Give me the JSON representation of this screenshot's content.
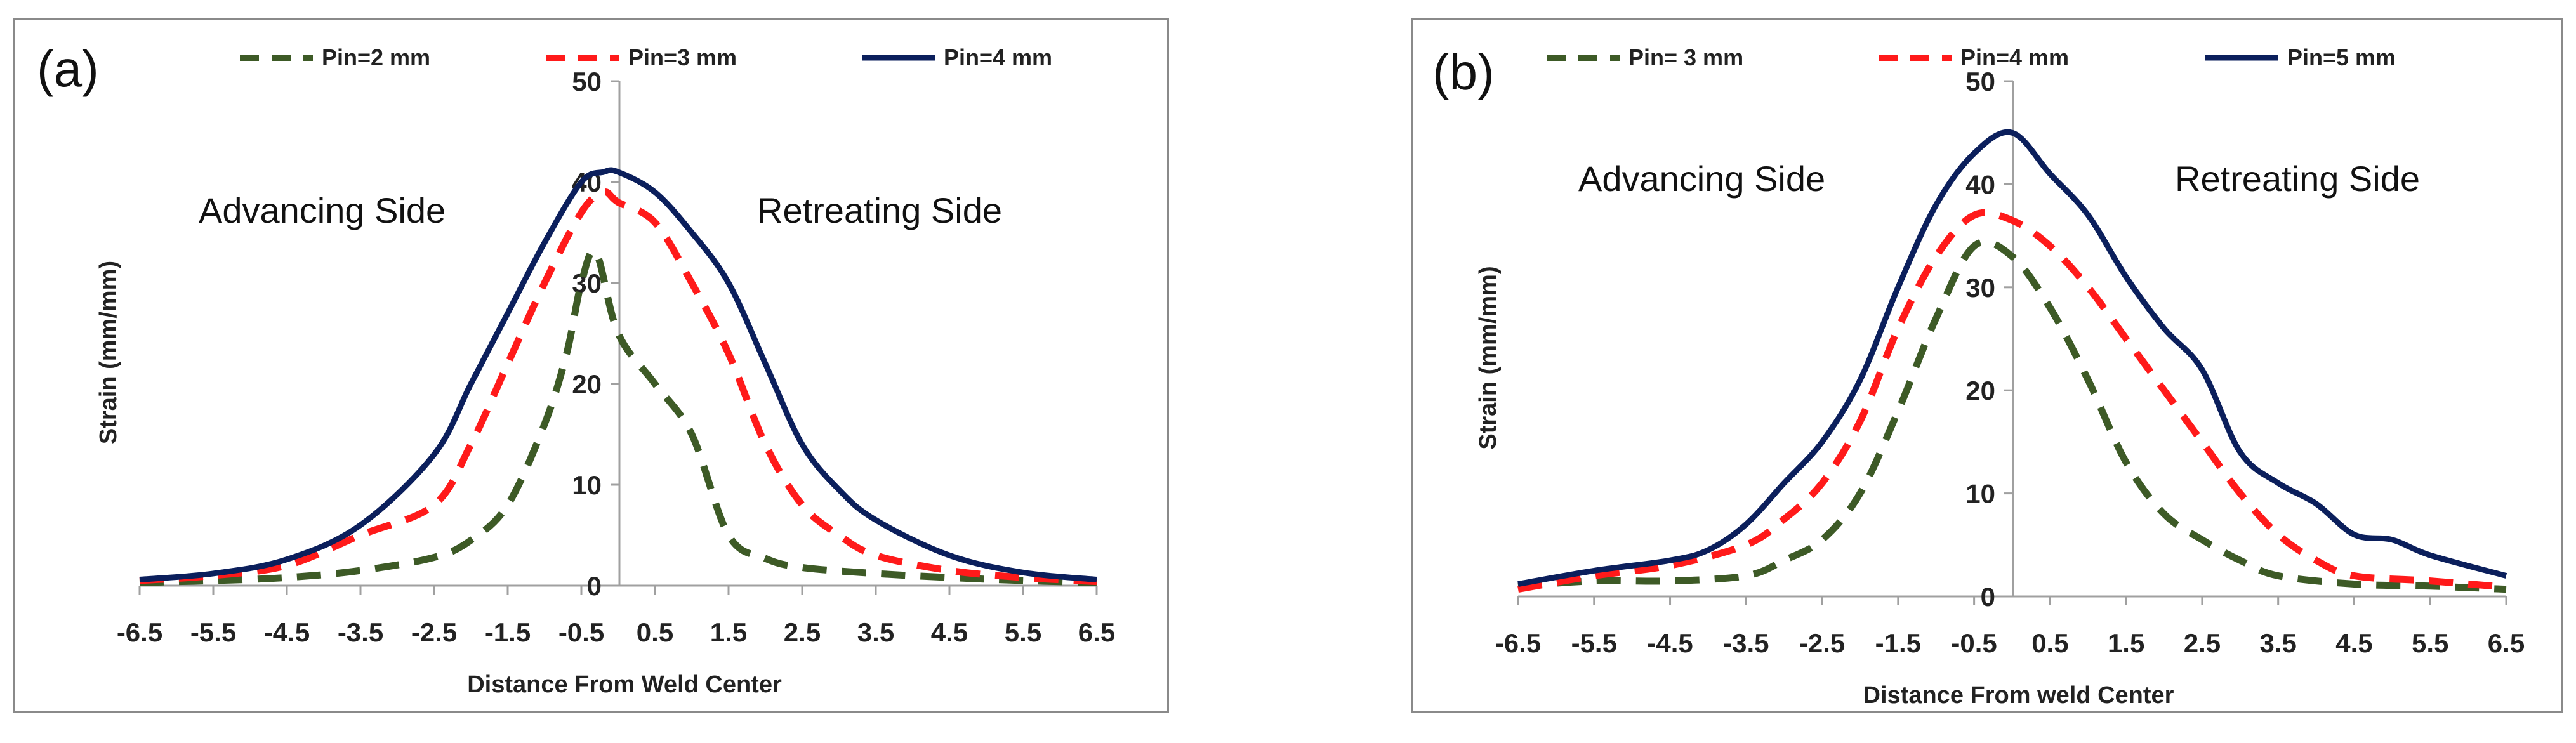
{
  "chart_data": [
    {
      "type": "line",
      "panel_label": "(a)",
      "title": "",
      "xlabel": "Distance From Weld  Center",
      "ylabel": "Strain (mm/mm)",
      "xlim": [
        -6.5,
        6.5
      ],
      "ylim": [
        0,
        50
      ],
      "x_ticks": [
        "-6.5",
        "-5.5",
        "-4.5",
        "-3.5",
        "-2.5",
        "-1.5",
        "-0.5",
        "0.5",
        "1.5",
        "2.5",
        "3.5",
        "4.5",
        "5.5",
        "6.5"
      ],
      "y_ticks": [
        "0",
        "10",
        "20",
        "30",
        "40",
        "50"
      ],
      "grid": false,
      "annotations": [
        "Advancing Side",
        "Retreating Side"
      ],
      "series": [
        {
          "name": "Pin=2 mm",
          "color": "#3d5a26",
          "dash": "dashed",
          "x": [
            -6.5,
            -5.5,
            -4.5,
            -3.5,
            -2.5,
            -2,
            -1.5,
            -1,
            -0.7,
            -0.5,
            -0.3,
            0,
            0.5,
            1,
            1.5,
            2,
            2.5,
            3.5,
            4.5,
            5.5,
            6.5
          ],
          "y": [
            0.3,
            0.5,
            0.8,
            1.5,
            2.8,
            4.5,
            8,
            16,
            23,
            30,
            33,
            25,
            20,
            15,
            5,
            2.7,
            1.8,
            1.2,
            0.8,
            0.5,
            0.3
          ]
        },
        {
          "name": "Pin=3 mm",
          "color": "#ff1a1a",
          "dash": "dashed",
          "x": [
            -6.5,
            -5.5,
            -4.5,
            -3.5,
            -2.5,
            -2,
            -1.5,
            -1,
            -0.5,
            -0.2,
            0,
            0.5,
            1,
            1.5,
            2,
            2.5,
            3,
            3.5,
            4.5,
            5.5,
            6.5
          ],
          "y": [
            0.5,
            1,
            2,
            5,
            8,
            14,
            22,
            30,
            37,
            39,
            38,
            36,
            30,
            23,
            14,
            8,
            5,
            3,
            1.5,
            0.8,
            0.4
          ]
        },
        {
          "name": "Pin=4 mm",
          "color": "#0b1f5c",
          "dash": "solid",
          "x": [
            -6.5,
            -5.5,
            -4.5,
            -3.5,
            -2.5,
            -2,
            -1.5,
            -1,
            -0.5,
            -0.2,
            0,
            0.5,
            1,
            1.5,
            2,
            2.5,
            3,
            3.5,
            4.5,
            5.5,
            6.5
          ],
          "y": [
            0.6,
            1.2,
            2.6,
            6,
            13,
            20,
            27,
            34,
            40,
            41,
            41,
            39,
            35,
            30,
            22,
            14,
            9.5,
            6.5,
            3,
            1.3,
            0.6
          ]
        }
      ]
    },
    {
      "type": "line",
      "panel_label": "(b)",
      "title": "",
      "xlabel": "Distance  From weld Center",
      "ylabel": "Strain (mm/mm)",
      "xlim": [
        -6.5,
        6.5
      ],
      "ylim": [
        0,
        50
      ],
      "x_ticks": [
        "-6.5",
        "-5.5",
        "-4.5",
        "-3.5",
        "-2.5",
        "-1.5",
        "-0.5",
        "0.5",
        "1.5",
        "2.5",
        "3.5",
        "4.5",
        "5.5",
        "6.5"
      ],
      "y_ticks": [
        "0",
        "10",
        "20",
        "30",
        "40",
        "50"
      ],
      "grid": false,
      "annotations": [
        "Advancing Side",
        "Retreating Side"
      ],
      "series": [
        {
          "name": "Pin= 3 mm",
          "color": "#3d5a26",
          "dash": "dashed",
          "x": [
            -6.5,
            -5.5,
            -4.5,
            -3.5,
            -3,
            -2.5,
            -2,
            -1.5,
            -1,
            -0.5,
            0,
            0.5,
            1,
            1.5,
            2,
            2.5,
            3,
            3.5,
            4.5,
            5.5,
            6.5
          ],
          "y": [
            1,
            1.5,
            1.5,
            2,
            3.5,
            5.5,
            10,
            18,
            27,
            34,
            33,
            28,
            21,
            13,
            8,
            5.5,
            3.5,
            2,
            1.2,
            1,
            0.7
          ]
        },
        {
          "name": "Pin=4 mm",
          "color": "#ff1a1a",
          "dash": "dashed",
          "x": [
            -6.5,
            -5.5,
            -4.5,
            -3.5,
            -3,
            -2.5,
            -2,
            -1.5,
            -1,
            -0.5,
            0,
            0.5,
            1,
            1.5,
            2,
            2.5,
            3,
            3.5,
            4,
            4.5,
            5.5,
            6.5
          ],
          "y": [
            0.7,
            2,
            3,
            5,
            7.5,
            11,
            17,
            26,
            33,
            37,
            36.5,
            34,
            30,
            25,
            20,
            15,
            10,
            6,
            3.5,
            2,
            1.5,
            0.9
          ]
        },
        {
          "name": "Pin=5 mm",
          "color": "#0b1f5c",
          "dash": "solid",
          "x": [
            -6.5,
            -5.5,
            -4.5,
            -4,
            -3.5,
            -3,
            -2.5,
            -2,
            -1.5,
            -1,
            -0.5,
            0,
            0.5,
            1,
            1.5,
            2,
            2.5,
            3,
            3.5,
            4,
            4.5,
            5,
            5.5,
            6.5
          ],
          "y": [
            1.2,
            2.5,
            3.5,
            4.5,
            7,
            11,
            15,
            21,
            30,
            38,
            43,
            45,
            41,
            37,
            31,
            26,
            22,
            14,
            11,
            9,
            6,
            5.5,
            4,
            2
          ]
        }
      ]
    }
  ]
}
